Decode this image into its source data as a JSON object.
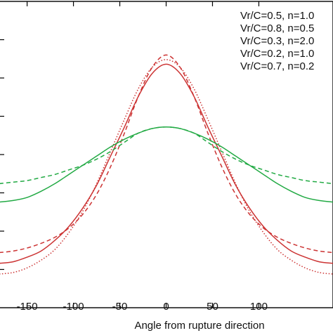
{
  "chart_data": {
    "type": "line",
    "xlabel": "Angle from rupture direction",
    "xlim": [
      -180,
      180
    ],
    "ylim": [
      0,
      2.0
    ],
    "x_ticks": [
      -150,
      -100,
      -50,
      0,
      50,
      100
    ],
    "legend_position": "top-right",
    "grid": false,
    "series": [
      {
        "name": "Vr/C=0.5, n=1.0",
        "color": "#cc3333",
        "dash": "solid",
        "x": [
          -180,
          -165,
          -150,
          -135,
          -120,
          -105,
          -90,
          -75,
          -60,
          -45,
          -30,
          -15,
          0,
          15,
          30,
          45,
          60,
          75,
          90,
          105,
          120,
          135,
          150,
          165,
          180
        ],
        "y": [
          0.29,
          0.3,
          0.33,
          0.37,
          0.44,
          0.53,
          0.65,
          0.8,
          0.99,
          1.18,
          1.38,
          1.53,
          1.59,
          1.53,
          1.38,
          1.18,
          0.99,
          0.8,
          0.65,
          0.53,
          0.44,
          0.37,
          0.33,
          0.3,
          0.29
        ]
      },
      {
        "name": "Vr/C=0.8, n=0.5",
        "color": "#cc3333",
        "dash": "dashed",
        "x": [
          -180,
          -165,
          -150,
          -135,
          -120,
          -105,
          -90,
          -75,
          -60,
          -45,
          -30,
          -15,
          0,
          15,
          30,
          45,
          60,
          75,
          90,
          105,
          120,
          135,
          150,
          165,
          180
        ],
        "y": [
          0.36,
          0.37,
          0.39,
          0.42,
          0.46,
          0.52,
          0.61,
          0.74,
          0.92,
          1.14,
          1.38,
          1.57,
          1.65,
          1.57,
          1.38,
          1.14,
          0.92,
          0.74,
          0.61,
          0.52,
          0.46,
          0.42,
          0.39,
          0.37,
          0.36
        ]
      },
      {
        "name": "Vr/C=0.3, n=2.0",
        "color": "#cc3333",
        "dash": "dotted",
        "x": [
          -180,
          -165,
          -150,
          -135,
          -120,
          -105,
          -90,
          -75,
          -60,
          -45,
          -30,
          -15,
          0,
          15,
          30,
          45,
          60,
          75,
          90,
          105,
          120,
          135,
          150,
          165,
          180
        ],
        "y": [
          0.22,
          0.23,
          0.26,
          0.31,
          0.38,
          0.49,
          0.63,
          0.81,
          1.02,
          1.23,
          1.43,
          1.57,
          1.62,
          1.57,
          1.43,
          1.23,
          1.02,
          0.81,
          0.63,
          0.49,
          0.38,
          0.31,
          0.26,
          0.23,
          0.22
        ]
      },
      {
        "name": "Vr/C=0.2, n=1.0",
        "color": "#22aa44",
        "dash": "solid",
        "x": [
          -180,
          -165,
          -150,
          -135,
          -120,
          -105,
          -90,
          -75,
          -60,
          -45,
          -30,
          -15,
          0,
          15,
          30,
          45,
          60,
          75,
          90,
          105,
          120,
          135,
          150,
          165,
          180
        ],
        "y": [
          0.69,
          0.7,
          0.72,
          0.76,
          0.81,
          0.87,
          0.93,
          0.99,
          1.05,
          1.1,
          1.14,
          1.17,
          1.18,
          1.17,
          1.14,
          1.1,
          1.05,
          0.99,
          0.93,
          0.87,
          0.81,
          0.76,
          0.72,
          0.7,
          0.69
        ]
      },
      {
        "name": "Vr/C=0.7, n=0.2",
        "color": "#22aa44",
        "dash": "dashed",
        "x": [
          -180,
          -165,
          -150,
          -135,
          -120,
          -105,
          -90,
          -75,
          -60,
          -45,
          -30,
          -15,
          0,
          15,
          30,
          45,
          60,
          75,
          90,
          105,
          120,
          135,
          150,
          165,
          180
        ],
        "y": [
          0.81,
          0.82,
          0.83,
          0.85,
          0.87,
          0.9,
          0.93,
          0.97,
          1.02,
          1.08,
          1.14,
          1.17,
          1.18,
          1.17,
          1.14,
          1.08,
          1.02,
          0.97,
          0.93,
          0.9,
          0.87,
          0.85,
          0.83,
          0.82,
          0.81
        ]
      }
    ]
  }
}
